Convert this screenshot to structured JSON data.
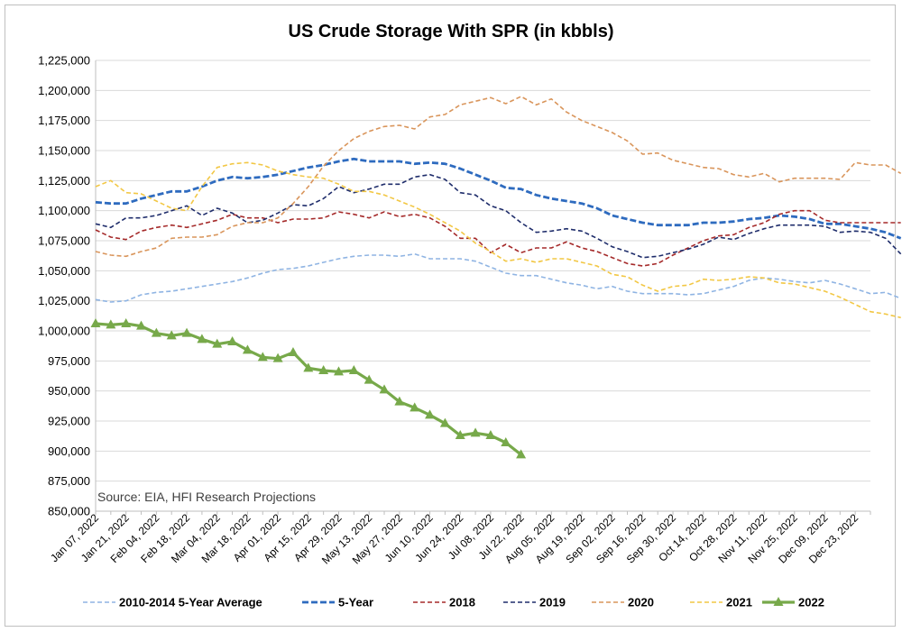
{
  "chart_data": {
    "type": "line",
    "title": "US Crude Storage With SPR (in kbbls)",
    "annotation": "Source: EIA, HFI Research Projections",
    "ylim": [
      850000,
      1225000
    ],
    "yticks": [
      "850,000",
      "875,000",
      "900,000",
      "925,000",
      "950,000",
      "975,000",
      "1,000,000",
      "1,025,000",
      "1,050,000",
      "1,075,000",
      "1,100,000",
      "1,125,000",
      "1,150,000",
      "1,175,000",
      "1,200,000",
      "1,225,000"
    ],
    "x_labels": [
      "Jan 07, 2022",
      "Jan 21, 2022",
      "Feb 04, 2022",
      "Feb 18, 2022",
      "Mar 04, 2022",
      "Mar 18, 2022",
      "Apr 01, 2022",
      "Apr 15, 2022",
      "Apr 29, 2022",
      "May 13, 2022",
      "May 27, 2022",
      "Jun 10, 2022",
      "Jun 24, 2022",
      "Jul 08, 2022",
      "Jul 22, 2022",
      "Aug 05, 2022",
      "Aug 19, 2022",
      "Sep 02, 2022",
      "Sep 16, 2022",
      "Sep 30, 2022",
      "Oct 14, 2022",
      "Oct 28, 2022",
      "Nov 11, 2022",
      "Nov 25, 2022",
      "Dec 09, 2022",
      "Dec 23, 2022"
    ],
    "grid": "horizontal",
    "legend_position": "bottom",
    "series": [
      {
        "name": "2010-2014 5-Year Average",
        "color": "#8fb4e3",
        "style": "dash",
        "values": [
          1026000,
          1024000,
          1025000,
          1030000,
          1032000,
          1033000,
          1035000,
          1037000,
          1039000,
          1041000,
          1044000,
          1048000,
          1051000,
          1052000,
          1054000,
          1057000,
          1060000,
          1062000,
          1063000,
          1063000,
          1062000,
          1064000,
          1060000,
          1060000,
          1060000,
          1058000,
          1053000,
          1048000,
          1046000,
          1046000,
          1043000,
          1040000,
          1038000,
          1035000,
          1037000,
          1033000,
          1031000,
          1031000,
          1031000,
          1030000,
          1031000,
          1034000,
          1037000,
          1042000,
          1044000,
          1043000,
          1041000,
          1040000,
          1042000,
          1039000,
          1035000,
          1031000,
          1032000,
          1027000
        ]
      },
      {
        "name": "5-Year",
        "color": "#2e6bbf",
        "style": "dash-bold",
        "values": [
          1107000,
          1106000,
          1106000,
          1110000,
          1113000,
          1116000,
          1116000,
          1120000,
          1125000,
          1128000,
          1127000,
          1128000,
          1130000,
          1133000,
          1136000,
          1138000,
          1141000,
          1143000,
          1141000,
          1141000,
          1141000,
          1139000,
          1140000,
          1139000,
          1135000,
          1130000,
          1125000,
          1119000,
          1118000,
          1113000,
          1110000,
          1108000,
          1106000,
          1102000,
          1096000,
          1093000,
          1090000,
          1088000,
          1088000,
          1088000,
          1090000,
          1090000,
          1091000,
          1093000,
          1094000,
          1096000,
          1095000,
          1093000,
          1089000,
          1089000,
          1087000,
          1085000,
          1082000,
          1077000
        ]
      },
      {
        "name": "2018",
        "color": "#a52a2a",
        "style": "dash",
        "values": [
          1084000,
          1078000,
          1076000,
          1083000,
          1086000,
          1088000,
          1086000,
          1089000,
          1092000,
          1097000,
          1094000,
          1094000,
          1090000,
          1093000,
          1093000,
          1094000,
          1099000,
          1097000,
          1094000,
          1099000,
          1095000,
          1097000,
          1094000,
          1087000,
          1077000,
          1077000,
          1065000,
          1072000,
          1065000,
          1069000,
          1069000,
          1074000,
          1069000,
          1066000,
          1061000,
          1056000,
          1054000,
          1056000,
          1063000,
          1069000,
          1075000,
          1079000,
          1080000,
          1086000,
          1090000,
          1097000,
          1100000,
          1100000,
          1092000,
          1090000,
          1090000,
          1090000,
          1090000,
          1090000
        ]
      },
      {
        "name": "2019",
        "color": "#1f2d6b",
        "style": "dash",
        "values": [
          1089000,
          1086000,
          1094000,
          1094000,
          1096000,
          1100000,
          1104000,
          1096000,
          1102000,
          1098000,
          1090000,
          1092000,
          1098000,
          1105000,
          1104000,
          1110000,
          1120000,
          1115000,
          1118000,
          1122000,
          1122000,
          1128000,
          1130000,
          1126000,
          1115000,
          1113000,
          1104000,
          1100000,
          1090000,
          1082000,
          1083000,
          1085000,
          1083000,
          1077000,
          1070000,
          1066000,
          1061000,
          1062000,
          1065000,
          1068000,
          1072000,
          1078000,
          1076000,
          1081000,
          1085000,
          1088000,
          1088000,
          1088000,
          1087000,
          1082000,
          1083000,
          1082000,
          1077000,
          1064000
        ]
      },
      {
        "name": "2020",
        "color": "#d9955b",
        "style": "dash",
        "values": [
          1066000,
          1063000,
          1062000,
          1066000,
          1069000,
          1077000,
          1078000,
          1078000,
          1080000,
          1087000,
          1090000,
          1090000,
          1094000,
          1106000,
          1120000,
          1137000,
          1150000,
          1160000,
          1166000,
          1170000,
          1171000,
          1168000,
          1178000,
          1180000,
          1188000,
          1191000,
          1194000,
          1189000,
          1195000,
          1188000,
          1193000,
          1182000,
          1175000,
          1170000,
          1165000,
          1158000,
          1147000,
          1148000,
          1142000,
          1139000,
          1136000,
          1135000,
          1130000,
          1128000,
          1131000,
          1124000,
          1127000,
          1127000,
          1127000,
          1126000,
          1140000,
          1138000,
          1138000,
          1131000
        ]
      },
      {
        "name": "2021",
        "color": "#f2c744",
        "style": "dash",
        "values": [
          1120000,
          1125000,
          1115000,
          1114000,
          1108000,
          1102000,
          1100000,
          1120000,
          1136000,
          1139000,
          1140000,
          1138000,
          1133000,
          1130000,
          1128000,
          1127000,
          1122000,
          1116000,
          1116000,
          1113000,
          1108000,
          1103000,
          1097000,
          1090000,
          1083000,
          1073000,
          1066000,
          1058000,
          1060000,
          1057000,
          1060000,
          1060000,
          1057000,
          1054000,
          1047000,
          1045000,
          1038000,
          1033000,
          1037000,
          1038000,
          1043000,
          1042000,
          1043000,
          1045000,
          1044000,
          1040000,
          1039000,
          1036000,
          1033000,
          1028000,
          1022000,
          1016000,
          1014000,
          1011000
        ]
      },
      {
        "name": "2022",
        "color": "#77a94a",
        "style": "solid-marker",
        "values": [
          1006000,
          1005000,
          1006000,
          1004000,
          998000,
          996000,
          998000,
          993000,
          989000,
          991000,
          984000,
          978000,
          977000,
          982000,
          969000,
          967000,
          966000,
          967000,
          959000,
          951000,
          941000,
          936000,
          930000,
          923000,
          913000,
          915000,
          913000,
          907000,
          897000
        ]
      }
    ]
  }
}
